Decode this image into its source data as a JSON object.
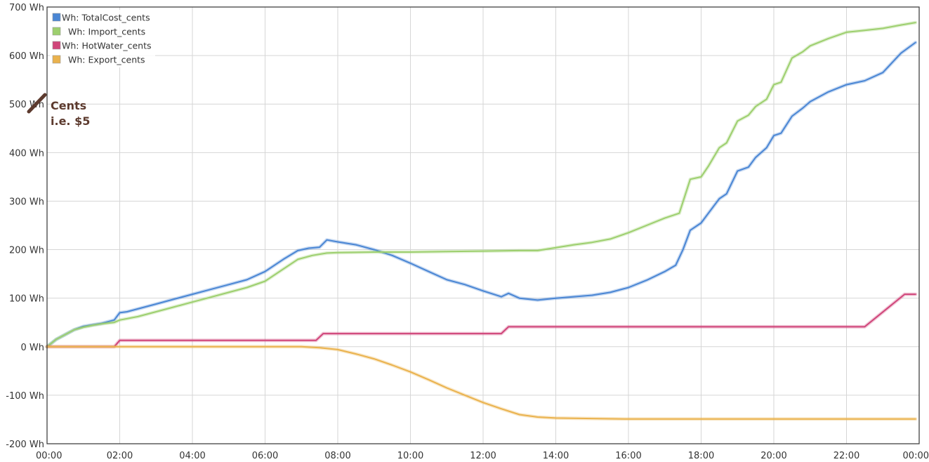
{
  "chart_data": {
    "type": "line",
    "xlabel": "",
    "ylabel": "",
    "x_ticks": [
      "00:00",
      "02:00",
      "04:00",
      "06:00",
      "08:00",
      "10:00",
      "12:00",
      "14:00",
      "16:00",
      "18:00",
      "20:00",
      "22:00",
      "00:00"
    ],
    "y_ticks": [
      "-200 Wh",
      "-100 Wh",
      "0 Wh",
      "100 Wh",
      "200 Wh",
      "300 Wh",
      "400 Wh",
      "500 Wh",
      "600 Wh",
      "700 Wh"
    ],
    "xlim": [
      0,
      24
    ],
    "ylim": [
      -200,
      700
    ],
    "grid": true,
    "legend_position": "top-left",
    "annotation": {
      "lines": [
        "Cents",
        "i.e. $5"
      ],
      "color": "#5c3a2e"
    },
    "series": [
      {
        "name": "Wh: TotalCost_cents",
        "color": "#4a86d4",
        "x": [
          0,
          0.25,
          0.5,
          0.75,
          1.0,
          1.25,
          1.5,
          1.85,
          2.0,
          2.2,
          2.5,
          3.0,
          3.5,
          4.0,
          4.5,
          5.0,
          5.5,
          6.0,
          6.5,
          6.9,
          7.2,
          7.5,
          7.7,
          8.0,
          8.5,
          9.0,
          9.5,
          10.0,
          10.5,
          11.0,
          11.5,
          12.0,
          12.5,
          12.7,
          13.0,
          13.5,
          14.0,
          14.5,
          15.0,
          15.5,
          16.0,
          16.5,
          17.0,
          17.3,
          17.5,
          17.7,
          18.0,
          18.2,
          18.5,
          18.7,
          19.0,
          19.3,
          19.5,
          19.8,
          20.0,
          20.2,
          20.5,
          20.8,
          21.0,
          21.5,
          22.0,
          22.5,
          23.0,
          23.5,
          23.9
        ],
        "y": [
          0,
          15,
          25,
          35,
          42,
          45,
          48,
          55,
          70,
          72,
          78,
          88,
          98,
          108,
          118,
          128,
          138,
          155,
          180,
          198,
          203,
          205,
          220,
          216,
          210,
          200,
          188,
          172,
          155,
          138,
          128,
          115,
          103,
          110,
          100,
          96,
          100,
          103,
          106,
          112,
          122,
          137,
          155,
          168,
          200,
          240,
          255,
          275,
          305,
          315,
          362,
          370,
          390,
          410,
          435,
          440,
          475,
          492,
          505,
          525,
          540,
          548,
          565,
          605,
          627
        ]
      },
      {
        "name": "Wh: Import_cents",
        "color": "#9dcf6e",
        "x": [
          0,
          0.25,
          0.5,
          0.75,
          1.0,
          1.25,
          1.5,
          1.85,
          2.0,
          2.5,
          3.0,
          3.5,
          4.0,
          4.5,
          5.0,
          5.5,
          6.0,
          6.5,
          6.9,
          7.3,
          7.7,
          8.0,
          9.0,
          10.0,
          11.0,
          12.0,
          13.0,
          13.5,
          14.0,
          14.5,
          15.0,
          15.5,
          16.0,
          16.5,
          17.0,
          17.4,
          17.7,
          18.0,
          18.2,
          18.5,
          18.7,
          19.0,
          19.3,
          19.5,
          19.8,
          20.0,
          20.2,
          20.5,
          20.8,
          21.0,
          21.5,
          22.0,
          22.5,
          23.0,
          23.5,
          23.9
        ],
        "y": [
          0,
          15,
          25,
          35,
          40,
          44,
          47,
          50,
          55,
          62,
          72,
          82,
          92,
          102,
          112,
          122,
          135,
          160,
          180,
          188,
          193,
          194,
          195,
          195,
          196,
          197,
          198,
          198,
          204,
          210,
          215,
          222,
          235,
          250,
          265,
          275,
          345,
          350,
          372,
          410,
          420,
          465,
          477,
          495,
          510,
          540,
          545,
          595,
          608,
          620,
          635,
          648,
          652,
          656,
          663,
          668
        ]
      },
      {
        "name": "Wh: HotWater_cents",
        "color": "#d0457a",
        "x": [
          0,
          1.85,
          2.0,
          7.4,
          7.6,
          12.5,
          12.7,
          22.5,
          23.6,
          23.9
        ],
        "y": [
          0,
          0,
          13,
          13,
          27,
          27,
          41,
          41,
          108,
          108
        ]
      },
      {
        "name": "Wh: Export_cents",
        "color": "#eab24d",
        "x": [
          0,
          2.0,
          4.0,
          6.0,
          7.0,
          7.5,
          8.0,
          8.5,
          9.0,
          9.5,
          10.0,
          10.5,
          11.0,
          11.5,
          12.0,
          12.5,
          13.0,
          13.5,
          14.0,
          15.0,
          16.0,
          18.0,
          20.0,
          22.0,
          23.9
        ],
        "y": [
          0,
          0,
          0,
          0,
          0,
          -2,
          -6,
          -15,
          -25,
          -38,
          -52,
          -68,
          -85,
          -100,
          -115,
          -128,
          -140,
          -145,
          -147,
          -148,
          -149,
          -149,
          -149,
          -149,
          -149
        ]
      }
    ]
  }
}
